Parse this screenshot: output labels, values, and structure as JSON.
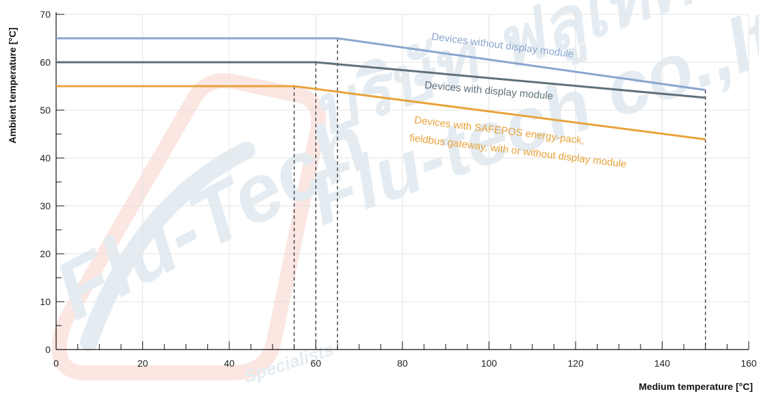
{
  "chart_data": {
    "type": "line",
    "xlabel": "Medium temperature [°C]",
    "ylabel": "Ambient temperature  [°C]",
    "xlim": [
      0,
      160
    ],
    "ylim": [
      0,
      70
    ],
    "x_ticks": [
      0,
      20,
      40,
      60,
      80,
      100,
      120,
      140,
      160
    ],
    "y_ticks": [
      0,
      10,
      20,
      30,
      40,
      50,
      60,
      70
    ],
    "x_minor_step": 5,
    "y_minor_step": 5,
    "grid": true,
    "series": [
      {
        "name": "Devices without display module",
        "color": "#8aa6cf",
        "x": [
          0,
          65,
          150
        ],
        "y": [
          65,
          65,
          54.2
        ]
      },
      {
        "name": "Devices with display module",
        "color": "#5f6f78",
        "x": [
          0,
          60,
          150
        ],
        "y": [
          60,
          60,
          52.6
        ]
      },
      {
        "name": "Devices with SAFEPOS energy-pack, fieldbus gateway, with or without display module",
        "color": "#e8a33a",
        "x": [
          0,
          55,
          150
        ],
        "y": [
          55,
          55,
          43.9
        ]
      }
    ],
    "annotations": [
      {
        "text": "Devices without display module",
        "color": "#8aa6cf"
      },
      {
        "text": "Devices with display module",
        "color": "#5f6f78"
      },
      {
        "text": "Devices with SAFEPOS energy-pack,",
        "color": "#e8a33a"
      },
      {
        "text": "fieldbus gateway, with or without display module",
        "color": "#e8a33a"
      }
    ],
    "reference_lines_x": [
      55,
      60,
      65,
      150
    ]
  },
  "watermark": {
    "brand": "Flu-Tech",
    "brand_alt": "Flu-tech co.,ltd.",
    "thai": "บริษัท ฟลูเทค",
    "tagline": "Specialists",
    "color": "#2f6d9e",
    "accent": "#e0411f"
  }
}
